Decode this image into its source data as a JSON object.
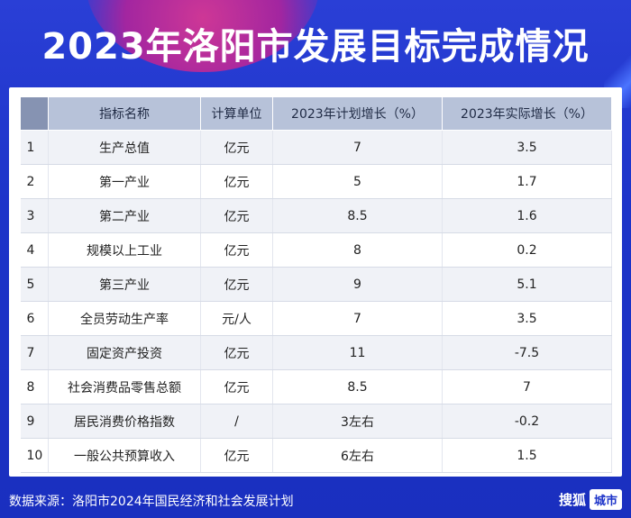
{
  "title": "2023年洛阳市发展目标完成情况",
  "table": {
    "headers": [
      "",
      "指标名称",
      "计算单位",
      "2023年计划增长（%）",
      "2023年实际增长（%）"
    ],
    "rows": [
      {
        "idx": "1",
        "name": "生产总值",
        "unit": "亿元",
        "plan": "7",
        "actual": "3.5"
      },
      {
        "idx": "2",
        "name": "第一产业",
        "unit": "亿元",
        "plan": "5",
        "actual": "1.7"
      },
      {
        "idx": "3",
        "name": "第二产业",
        "unit": "亿元",
        "plan": "8.5",
        "actual": "1.6"
      },
      {
        "idx": "4",
        "name": "规模以上工业",
        "unit": "亿元",
        "plan": "8",
        "actual": "0.2"
      },
      {
        "idx": "5",
        "name": "第三产业",
        "unit": "亿元",
        "plan": "9",
        "actual": "5.1"
      },
      {
        "idx": "6",
        "name": "全员劳动生产率",
        "unit": "元/人",
        "plan": "7",
        "actual": "3.5"
      },
      {
        "idx": "7",
        "name": "固定资产投资",
        "unit": "亿元",
        "plan": "11",
        "actual": "-7.5"
      },
      {
        "idx": "8",
        "name": "社会消费品零售总额",
        "unit": "亿元",
        "plan": "8.5",
        "actual": "7"
      },
      {
        "idx": "9",
        "name": "居民消费价格指数",
        "unit": "/",
        "plan": "3左右",
        "actual": "-0.2"
      },
      {
        "idx": "10",
        "name": "一般公共预算收入",
        "unit": "亿元",
        "plan": "6左右",
        "actual": "1.5"
      }
    ]
  },
  "footer": {
    "source": "数据来源：洛阳市2024年国民经济和社会发展计划",
    "brand_name": "搜狐",
    "brand_tag": "城市"
  },
  "colors": {
    "background": "#1d34c9",
    "header_cell": "#b7c2d9",
    "header_index_cell": "#8693b2",
    "row_alt": "#f0f2f7"
  }
}
